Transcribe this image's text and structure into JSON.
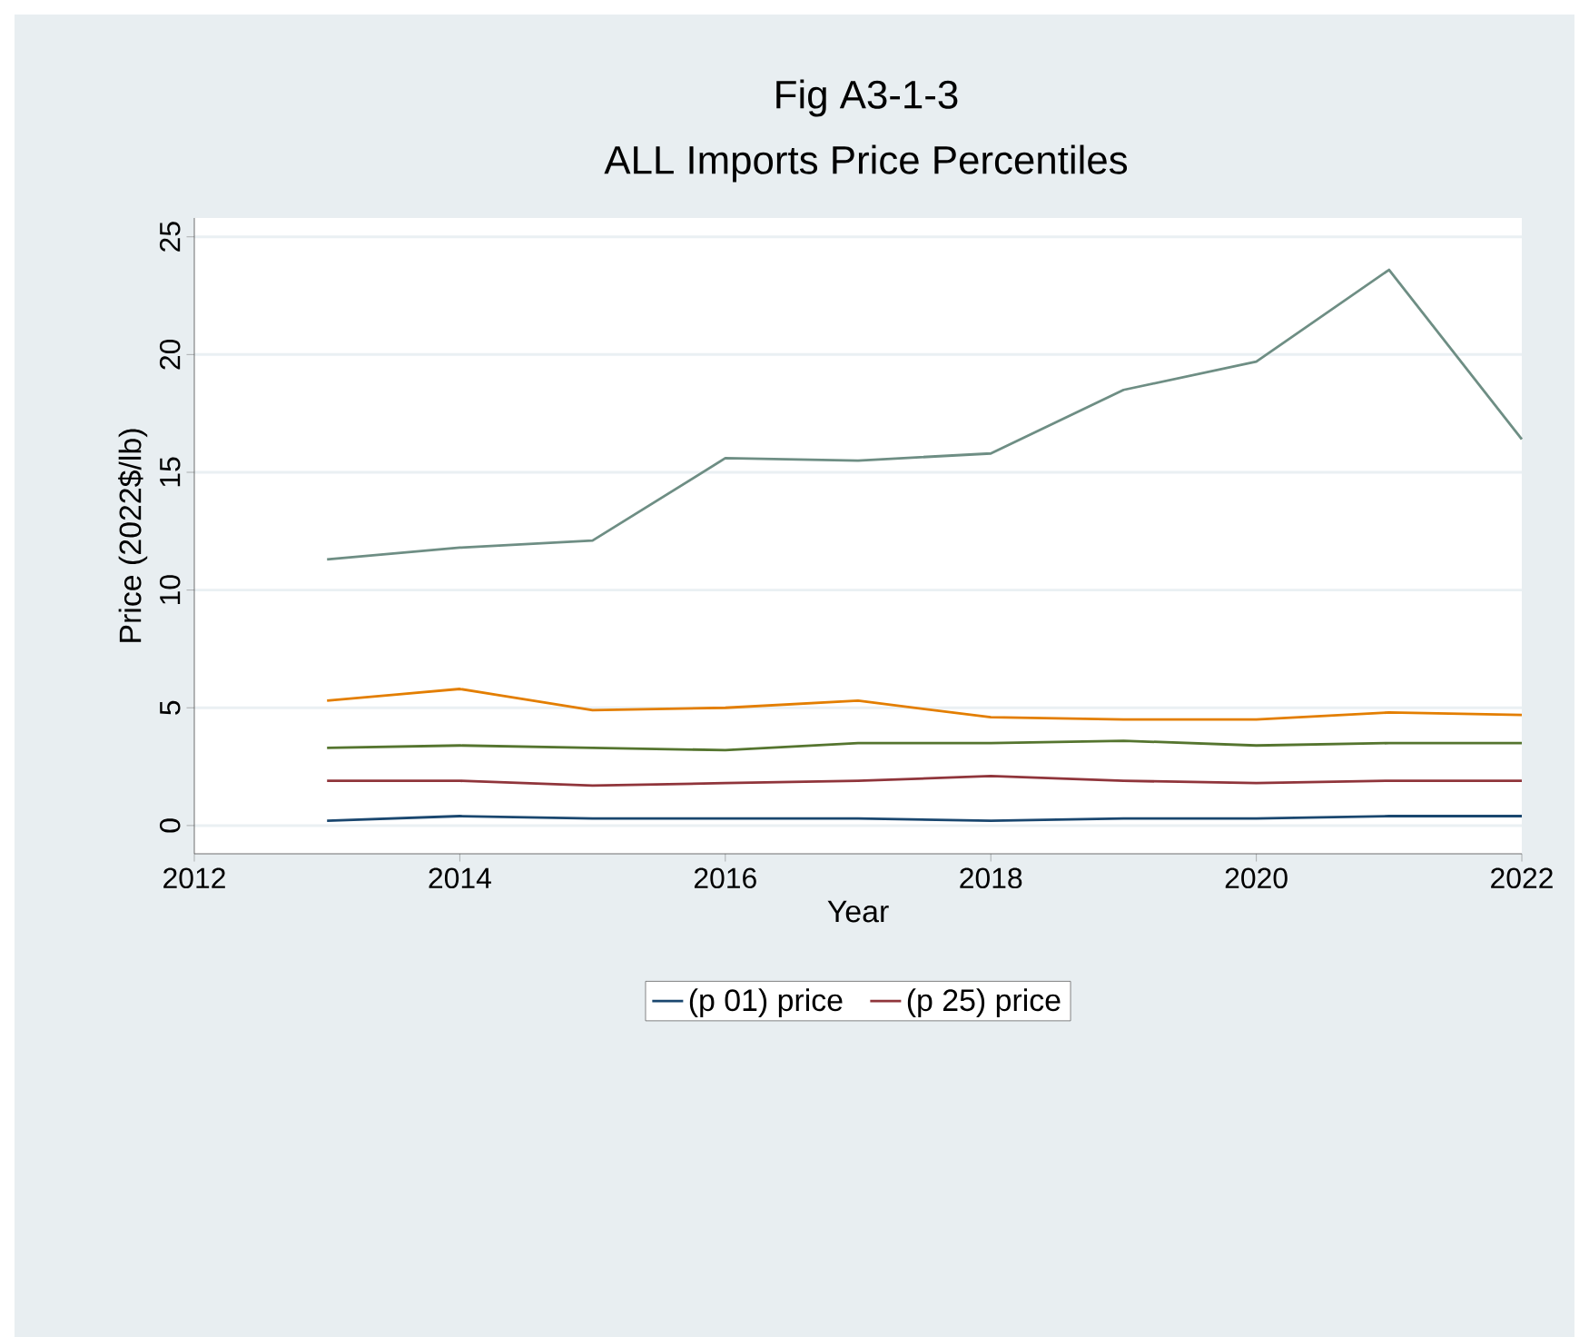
{
  "chart_data": {
    "type": "line",
    "title": "Fig A3-1-3",
    "subtitle": "ALL Imports Price Percentiles",
    "xlabel": "Year",
    "ylabel": "Price (2022$/lb)",
    "x": [
      2013,
      2014,
      2015,
      2016,
      2017,
      2018,
      2019,
      2020,
      2021,
      2022
    ],
    "series": [
      {
        "name": "(p 01) price",
        "color": "#1a476f",
        "values": [
          0.2,
          0.4,
          0.3,
          0.3,
          0.3,
          0.2,
          0.3,
          0.3,
          0.4,
          0.4
        ]
      },
      {
        "name": "(p 25) price",
        "color": "#90353b",
        "values": [
          1.9,
          1.9,
          1.7,
          1.8,
          1.9,
          2.1,
          1.9,
          1.8,
          1.9,
          1.9
        ]
      },
      {
        "color": "#55752f",
        "values": [
          3.3,
          3.4,
          3.3,
          3.2,
          3.5,
          3.5,
          3.6,
          3.4,
          3.5,
          3.5
        ]
      },
      {
        "color": "#e37e00",
        "values": [
          5.3,
          5.8,
          4.9,
          5.0,
          5.3,
          4.6,
          4.5,
          4.5,
          4.8,
          4.7
        ]
      },
      {
        "color": "#6e8e84",
        "values": [
          11.3,
          11.8,
          12.1,
          15.6,
          15.5,
          15.8,
          18.5,
          19.7,
          23.6,
          16.4
        ]
      }
    ],
    "xlim": [
      2012,
      2022
    ],
    "xticks": [
      2012,
      2014,
      2016,
      2018,
      2020,
      2022
    ],
    "ylim": [
      -1.2,
      25.8
    ],
    "yticks": [
      0,
      5,
      10,
      15,
      20,
      25
    ],
    "grid": "y",
    "legend": "bottom",
    "marker": "none",
    "line_style": "solid"
  }
}
